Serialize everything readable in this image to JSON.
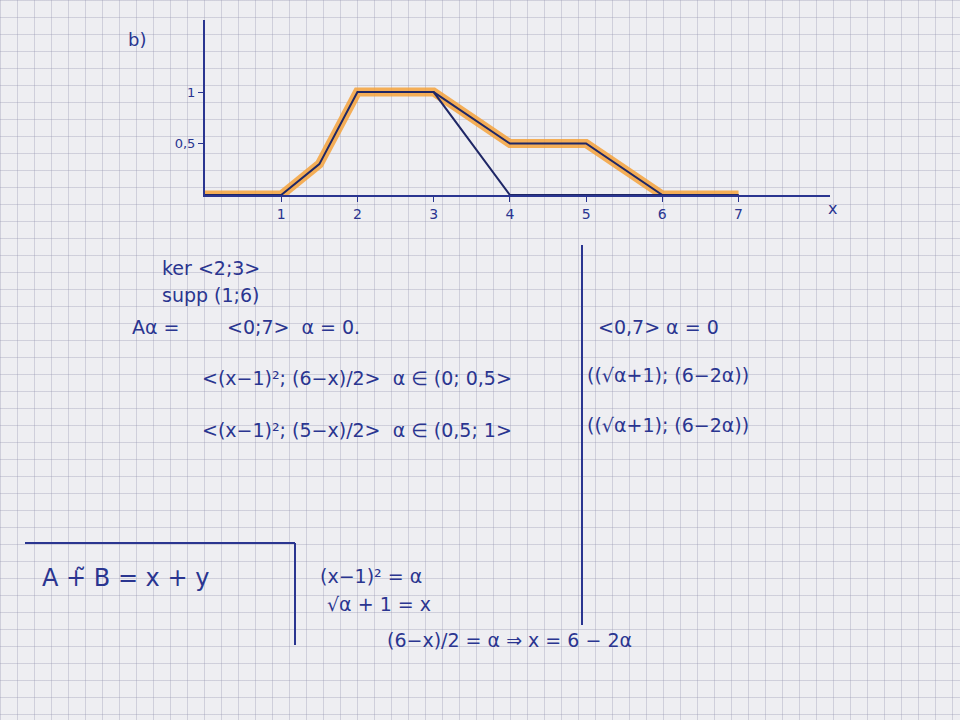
{
  "chart_data": {
    "type": "line",
    "title": "b)",
    "x_label": "x",
    "x": [
      0,
      1,
      1.5,
      2,
      3,
      4,
      5,
      6,
      7
    ],
    "xlim": [
      0,
      8.2
    ],
    "ylim": [
      0,
      1.7
    ],
    "xticks": [
      1,
      2,
      3,
      4,
      5,
      6,
      7
    ],
    "yticks": [
      {
        "value": 0.5,
        "label": "0,5"
      },
      1
    ],
    "grid": false,
    "series": [
      {
        "color": "#f4a23c",
        "line_style": "highlight",
        "values": [
          0,
          0,
          0.3,
          1,
          1,
          0.5,
          0.5,
          0,
          0
        ]
      },
      {
        "color": "#1f2766",
        "line_style": "solid",
        "values": [
          0,
          0,
          0.3,
          1,
          1,
          0,
          0,
          0,
          0
        ]
      },
      {
        "color": "#1f2766",
        "line_style": "solid",
        "values": [
          null,
          null,
          null,
          null,
          1,
          0.5,
          0.5,
          0,
          0
        ]
      }
    ],
    "annotations": [
      "ker <2;3>",
      "supp (1;6)",
      "Aα =",
      "<0;7>  α = 0.",
      "<(x−1)²; (6−x)/2>  α ∈ (0; 0,5>",
      "<(x−1)²; (5−x)/2>  α ∈ (0,5; 1>",
      "<0,7> α = 0",
      "((√α+1); (6−2α))",
      "((√α+1); (6−2α))",
      "A +̃ B = x + y",
      "(x−1)² = α",
      "√α + 1 = x",
      "(6−x)/2 = α ⇒ x = 6 − 2α"
    ]
  }
}
